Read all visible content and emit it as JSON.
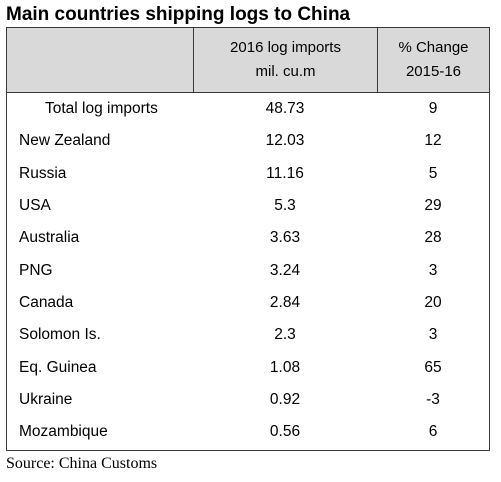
{
  "title": "Main countries shipping logs to China",
  "header": {
    "col1": "",
    "col2_line1": "2016 log imports",
    "col2_line2": "mil. cu.m",
    "col3_line1": "% Change",
    "col3_line2": "2015-16"
  },
  "rows": [
    {
      "country": "Total log imports",
      "imports": "48.73",
      "change": "9"
    },
    {
      "country": "New Zealand",
      "imports": "12.03",
      "change": "12"
    },
    {
      "country": "Russia",
      "imports": "11.16",
      "change": "5"
    },
    {
      "country": "USA",
      "imports": "5.3",
      "change": "29"
    },
    {
      "country": "Australia",
      "imports": "3.63",
      "change": "28"
    },
    {
      "country": "PNG",
      "imports": "3.24",
      "change": "3"
    },
    {
      "country": "Canada",
      "imports": "2.84",
      "change": "20"
    },
    {
      "country": "Solomon Is.",
      "imports": "2.3",
      "change": "3"
    },
    {
      "country": "Eq. Guinea",
      "imports": "1.08",
      "change": "65"
    },
    {
      "country": "Ukraine",
      "imports": "0.92",
      "change": "-3"
    },
    {
      "country": "Mozambique",
      "imports": "0.56",
      "change": "6"
    }
  ],
  "source": "Source: China Customs",
  "chart_data": {
    "type": "table",
    "title": "Main countries shipping logs to China",
    "columns": [
      "",
      "2016 log imports mil. cu.m",
      "% Change 2015-16"
    ],
    "rows": [
      [
        "Total log imports",
        48.73,
        9
      ],
      [
        "New Zealand",
        12.03,
        12
      ],
      [
        "Russia",
        11.16,
        5
      ],
      [
        "USA",
        5.3,
        29
      ],
      [
        "Australia",
        3.63,
        28
      ],
      [
        "PNG",
        3.24,
        3
      ],
      [
        "Canada",
        2.84,
        20
      ],
      [
        "Solomon Is.",
        2.3,
        3
      ],
      [
        "Eq. Guinea",
        1.08,
        65
      ],
      [
        "Ukraine",
        0.92,
        -3
      ],
      [
        "Mozambique",
        0.56,
        6
      ]
    ]
  }
}
